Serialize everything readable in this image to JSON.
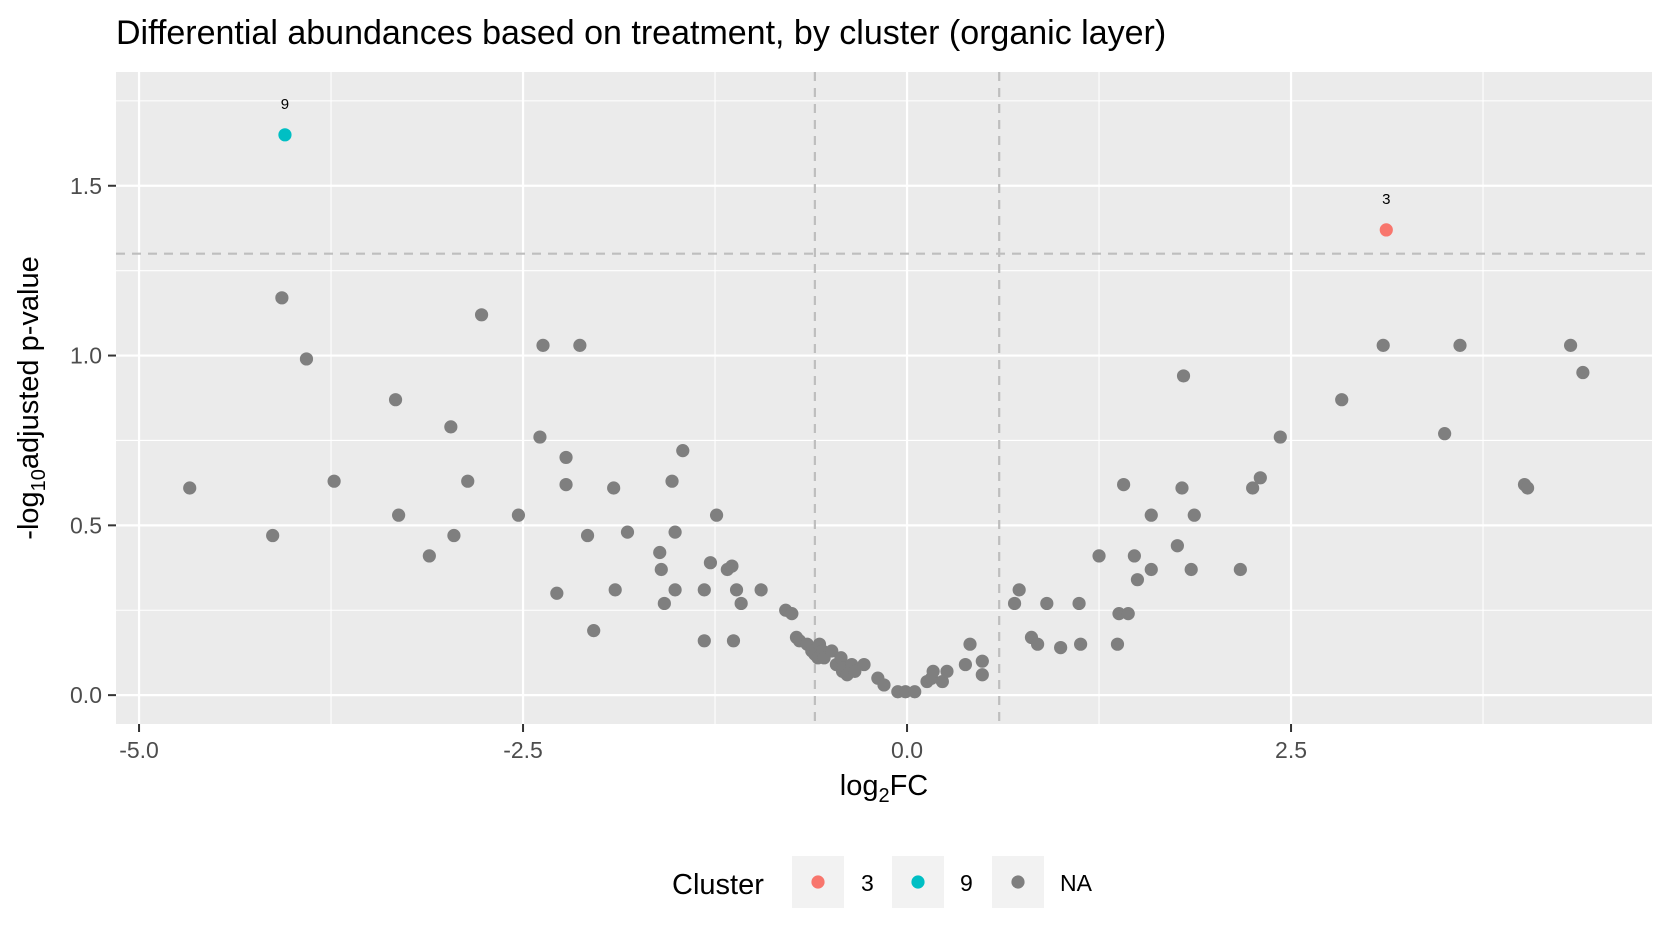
{
  "chart_data": {
    "type": "scatter",
    "title": "Differential abundances based on treatment, by cluster (organic layer)",
    "xlabel": {
      "base": "log",
      "sub": "2",
      "rest": "FC"
    },
    "ylabel": {
      "base": "-log",
      "sub": "10",
      "rest": "adjusted p-value"
    },
    "xlim": [
      -5.15,
      4.85
    ],
    "ylim": [
      -0.085,
      1.835
    ],
    "x_ticks": [
      -5.0,
      -2.5,
      0.0,
      2.5
    ],
    "x_tick_labels": [
      "-5.0",
      "-2.5",
      "0.0",
      "2.5"
    ],
    "y_ticks": [
      0.0,
      0.5,
      1.0,
      1.5
    ],
    "y_tick_labels": [
      "0.0",
      "0.5",
      "1.0",
      "1.5"
    ],
    "grid": true,
    "threshold_lines": {
      "x": [
        -0.6,
        0.6
      ],
      "y": 1.3
    },
    "legend": {
      "title": "Cluster",
      "position": "bottom",
      "entries": [
        {
          "label": "3",
          "color": "#F8766D"
        },
        {
          "label": "9",
          "color": "#00BFC4"
        },
        {
          "label": "NA",
          "color": "#7F7F7F"
        }
      ]
    },
    "colors": {
      "panel_bg": "#EBEBEB",
      "grid": "#FFFFFF",
      "threshold": "#BEBEBE",
      "na_point": "#7F7F7F"
    },
    "series": [
      {
        "name": "3",
        "color": "#F8766D",
        "points": [
          [
            3.12,
            1.37
          ]
        ]
      },
      {
        "name": "9",
        "color": "#00BFC4",
        "points": [
          [
            -4.05,
            1.65
          ]
        ]
      },
      {
        "name": "NA",
        "color": "#7F7F7F",
        "points": [
          [
            -4.67,
            0.61
          ],
          [
            -4.13,
            0.47
          ],
          [
            -4.07,
            1.17
          ],
          [
            -3.91,
            0.99
          ],
          [
            -3.73,
            0.63
          ],
          [
            -3.33,
            0.87
          ],
          [
            -3.31,
            0.53
          ],
          [
            -3.11,
            0.41
          ],
          [
            -2.97,
            0.79
          ],
          [
            -2.95,
            0.47
          ],
          [
            -2.86,
            0.63
          ],
          [
            -2.77,
            1.12
          ],
          [
            -2.53,
            0.53
          ],
          [
            -2.39,
            0.76
          ],
          [
            -2.37,
            1.03
          ],
          [
            -2.28,
            0.3
          ],
          [
            -2.22,
            0.7
          ],
          [
            -2.22,
            0.62
          ],
          [
            -2.13,
            1.03
          ],
          [
            -2.08,
            0.47
          ],
          [
            -2.04,
            0.19
          ],
          [
            -1.91,
            0.61
          ],
          [
            -1.9,
            0.31
          ],
          [
            -1.82,
            0.48
          ],
          [
            -1.61,
            0.42
          ],
          [
            -1.6,
            0.37
          ],
          [
            -1.58,
            0.27
          ],
          [
            -1.53,
            0.63
          ],
          [
            -1.51,
            0.31
          ],
          [
            -1.51,
            0.48
          ],
          [
            -1.46,
            0.72
          ],
          [
            -1.32,
            0.31
          ],
          [
            -1.32,
            0.16
          ],
          [
            -1.28,
            0.39
          ],
          [
            -1.24,
            0.53
          ],
          [
            -1.17,
            0.37
          ],
          [
            -1.14,
            0.38
          ],
          [
            -1.13,
            0.16
          ],
          [
            -1.11,
            0.31
          ],
          [
            -1.08,
            0.27
          ],
          [
            -0.95,
            0.31
          ],
          [
            -0.79,
            0.25
          ],
          [
            -0.75,
            0.24
          ],
          [
            -0.72,
            0.17
          ],
          [
            -0.7,
            0.16
          ],
          [
            -0.65,
            0.15
          ],
          [
            -0.62,
            0.13
          ],
          [
            -0.6,
            0.12
          ],
          [
            -0.58,
            0.11
          ],
          [
            -0.57,
            0.15
          ],
          [
            -0.55,
            0.13
          ],
          [
            -0.54,
            0.11
          ],
          [
            -0.49,
            0.13
          ],
          [
            -0.46,
            0.09
          ],
          [
            -0.43,
            0.11
          ],
          [
            -0.42,
            0.07
          ],
          [
            -0.41,
            0.08
          ],
          [
            -0.39,
            0.06
          ],
          [
            -0.36,
            0.09
          ],
          [
            -0.34,
            0.07
          ],
          [
            -0.28,
            0.09
          ],
          [
            -0.19,
            0.05
          ],
          [
            -0.15,
            0.03
          ],
          [
            -0.06,
            0.01
          ],
          [
            -0.01,
            0.01
          ],
          [
            0.05,
            0.01
          ],
          [
            0.13,
            0.04
          ],
          [
            0.16,
            0.05
          ],
          [
            0.17,
            0.07
          ],
          [
            0.23,
            0.04
          ],
          [
            0.26,
            0.07
          ],
          [
            0.38,
            0.09
          ],
          [
            0.41,
            0.15
          ],
          [
            0.49,
            0.1
          ],
          [
            0.49,
            0.06
          ],
          [
            0.7,
            0.27
          ],
          [
            0.73,
            0.31
          ],
          [
            0.81,
            0.17
          ],
          [
            0.85,
            0.15
          ],
          [
            0.91,
            0.27
          ],
          [
            1.0,
            0.14
          ],
          [
            1.12,
            0.27
          ],
          [
            1.13,
            0.15
          ],
          [
            1.25,
            0.41
          ],
          [
            1.37,
            0.15
          ],
          [
            1.38,
            0.24
          ],
          [
            1.41,
            0.62
          ],
          [
            1.44,
            0.24
          ],
          [
            1.48,
            0.41
          ],
          [
            1.5,
            0.34
          ],
          [
            1.59,
            0.37
          ],
          [
            1.59,
            0.53
          ],
          [
            1.76,
            0.44
          ],
          [
            1.79,
            0.61
          ],
          [
            1.8,
            0.94
          ],
          [
            1.85,
            0.37
          ],
          [
            1.87,
            0.53
          ],
          [
            2.17,
            0.37
          ],
          [
            2.25,
            0.61
          ],
          [
            2.3,
            0.64
          ],
          [
            2.43,
            0.76
          ],
          [
            2.83,
            0.87
          ],
          [
            3.1,
            1.03
          ],
          [
            3.5,
            0.77
          ],
          [
            3.6,
            1.03
          ],
          [
            4.02,
            0.62
          ],
          [
            4.04,
            0.61
          ],
          [
            4.32,
            1.03
          ],
          [
            4.4,
            0.95
          ]
        ]
      }
    ],
    "point_labels": [
      {
        "x": 3.12,
        "y": 1.37,
        "text": "3"
      },
      {
        "x": -4.05,
        "y": 1.65,
        "text": "9"
      }
    ]
  }
}
